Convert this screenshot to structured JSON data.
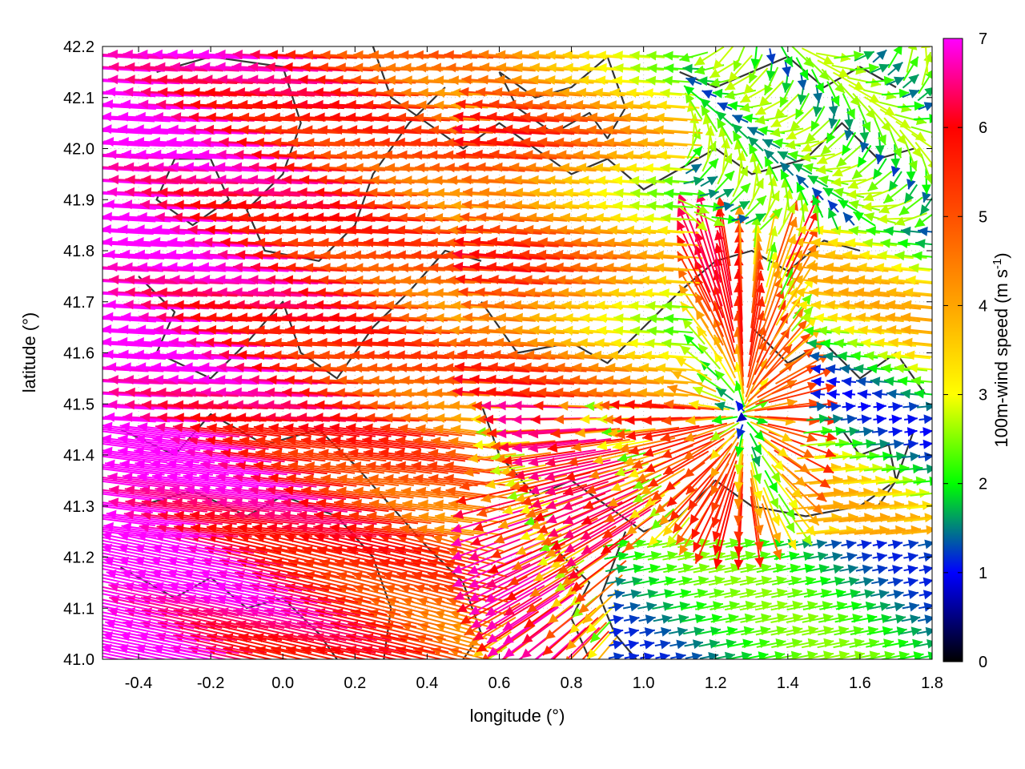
{
  "chart_data": {
    "type": "vector-field",
    "xlabel": "longitude (°)",
    "ylabel": "latitude (°)",
    "colorbar_label": "100m-wind speed (m s",
    "colorbar_label_sup": "-1",
    "colorbar_label_end": ")",
    "xlim": [
      -0.5,
      1.8
    ],
    "ylim": [
      41.0,
      42.2
    ],
    "x_ticks": [
      {
        "value": -0.4,
        "label": "-0.4"
      },
      {
        "value": -0.2,
        "label": "-0.2"
      },
      {
        "value": 0.0,
        "label": "0.0"
      },
      {
        "value": 0.2,
        "label": "0.2"
      },
      {
        "value": 0.4,
        "label": "0.4"
      },
      {
        "value": 0.6,
        "label": "0.6"
      },
      {
        "value": 0.8,
        "label": "0.8"
      },
      {
        "value": 1.0,
        "label": "1.0"
      },
      {
        "value": 1.2,
        "label": "1.2"
      },
      {
        "value": 1.4,
        "label": "1.4"
      },
      {
        "value": 1.6,
        "label": "1.6"
      },
      {
        "value": 1.8,
        "label": "1.8"
      }
    ],
    "y_ticks": [
      {
        "value": 41.0,
        "label": "41.0"
      },
      {
        "value": 41.1,
        "label": "41.1"
      },
      {
        "value": 41.2,
        "label": "41.2"
      },
      {
        "value": 41.3,
        "label": "41.3"
      },
      {
        "value": 41.4,
        "label": "41.4"
      },
      {
        "value": 41.5,
        "label": "41.5"
      },
      {
        "value": 41.6,
        "label": "41.6"
      },
      {
        "value": 41.7,
        "label": "41.7"
      },
      {
        "value": 41.8,
        "label": "41.8"
      },
      {
        "value": 41.9,
        "label": "41.9"
      },
      {
        "value": 42.0,
        "label": "42.0"
      },
      {
        "value": 42.1,
        "label": "42.1"
      },
      {
        "value": 42.2,
        "label": "42.2"
      }
    ],
    "colorbar": {
      "range": [
        0,
        7
      ],
      "ticks": [
        {
          "value": 0,
          "label": "0"
        },
        {
          "value": 1,
          "label": "1"
        },
        {
          "value": 2,
          "label": "2"
        },
        {
          "value": 3,
          "label": "3"
        },
        {
          "value": 4,
          "label": "4"
        },
        {
          "value": 5,
          "label": "5"
        },
        {
          "value": 6,
          "label": "6"
        },
        {
          "value": 7,
          "label": "7"
        }
      ],
      "stops": [
        {
          "value": 0,
          "color": "#000000"
        },
        {
          "value": 1,
          "color": "#0000ff"
        },
        {
          "value": 2,
          "color": "#00ff00"
        },
        {
          "value": 3,
          "color": "#ffff00"
        },
        {
          "value": 4,
          "color": "#ffa500"
        },
        {
          "value": 5,
          "color": "#ff5000"
        },
        {
          "value": 6,
          "color": "#ff0000"
        },
        {
          "value": 7,
          "color": "#ff00ff"
        }
      ]
    },
    "grid": true,
    "contour_color": "#333333",
    "contours": [
      [
        [
          -0.35,
          42.15
        ],
        [
          -0.2,
          42.18
        ],
        [
          0.0,
          42.16
        ],
        [
          0.05,
          42.05
        ],
        [
          0.0,
          41.95
        ],
        [
          -0.1,
          41.88
        ],
        [
          -0.05,
          41.8
        ],
        [
          0.1,
          41.78
        ],
        [
          0.2,
          41.85
        ],
        [
          0.25,
          41.95
        ],
        [
          0.35,
          42.05
        ],
        [
          0.45,
          42.12
        ]
      ],
      [
        [
          -0.2,
          41.98
        ],
        [
          -0.15,
          41.9
        ],
        [
          -0.25,
          41.85
        ],
        [
          -0.35,
          41.9
        ],
        [
          -0.3,
          41.98
        ],
        [
          -0.2,
          41.98
        ]
      ],
      [
        [
          -0.4,
          41.75
        ],
        [
          -0.3,
          41.68
        ],
        [
          -0.35,
          41.6
        ],
        [
          -0.2,
          41.55
        ],
        [
          -0.1,
          41.62
        ],
        [
          0.0,
          41.7
        ],
        [
          0.05,
          41.6
        ],
        [
          0.15,
          41.55
        ],
        [
          0.25,
          41.65
        ],
        [
          0.35,
          41.72
        ],
        [
          0.45,
          41.8
        ],
        [
          0.55,
          41.78
        ]
      ],
      [
        [
          -0.45,
          41.45
        ],
        [
          -0.3,
          41.4
        ],
        [
          -0.2,
          41.48
        ],
        [
          -0.05,
          41.42
        ],
        [
          0.1,
          41.45
        ],
        [
          0.2,
          41.38
        ],
        [
          0.3,
          41.3
        ],
        [
          0.4,
          41.22
        ],
        [
          0.5,
          41.15
        ],
        [
          0.55,
          41.05
        ],
        [
          0.5,
          41.0
        ]
      ],
      [
        [
          -0.4,
          41.3
        ],
        [
          -0.25,
          41.33
        ],
        [
          -0.1,
          41.28
        ],
        [
          0.0,
          41.32
        ],
        [
          0.15,
          41.28
        ],
        [
          0.25,
          41.2
        ],
        [
          0.3,
          41.1
        ],
        [
          0.28,
          41.0
        ]
      ],
      [
        [
          -0.45,
          41.18
        ],
        [
          -0.3,
          41.12
        ],
        [
          -0.2,
          41.16
        ],
        [
          -0.1,
          41.1
        ],
        [
          0.0,
          41.12
        ],
        [
          0.1,
          41.05
        ],
        [
          0.15,
          41.0
        ]
      ],
      [
        [
          0.55,
          41.5
        ],
        [
          0.6,
          41.4
        ],
        [
          0.7,
          41.32
        ],
        [
          0.8,
          41.35
        ],
        [
          0.9,
          41.3
        ],
        [
          1.0,
          41.25
        ],
        [
          1.1,
          41.28
        ],
        [
          1.2,
          41.35
        ],
        [
          1.3,
          41.3
        ],
        [
          1.45,
          41.28
        ],
        [
          1.6,
          41.3
        ],
        [
          1.7,
          41.35
        ],
        [
          1.75,
          41.45
        ]
      ],
      [
        [
          0.75,
          41.22
        ],
        [
          0.85,
          41.15
        ],
        [
          0.8,
          41.08
        ],
        [
          0.85,
          41.0
        ]
      ],
      [
        [
          0.95,
          41.25
        ],
        [
          0.88,
          41.12
        ],
        [
          0.92,
          41.05
        ],
        [
          0.98,
          41.0
        ]
      ],
      [
        [
          0.55,
          41.7
        ],
        [
          0.65,
          41.6
        ],
        [
          0.8,
          41.62
        ],
        [
          0.9,
          41.58
        ],
        [
          1.0,
          41.65
        ],
        [
          1.1,
          41.72
        ],
        [
          1.2,
          41.78
        ],
        [
          1.3,
          41.8
        ],
        [
          1.4,
          41.76
        ],
        [
          1.5,
          41.82
        ],
        [
          1.6,
          41.8
        ]
      ],
      [
        [
          0.25,
          42.2
        ],
        [
          0.3,
          42.1
        ],
        [
          0.4,
          42.05
        ],
        [
          0.5,
          42.0
        ],
        [
          0.6,
          42.05
        ],
        [
          0.7,
          42.0
        ],
        [
          0.8,
          41.95
        ],
        [
          0.9,
          41.98
        ],
        [
          1.0,
          41.92
        ],
        [
          1.1,
          41.96
        ],
        [
          1.2,
          42.0
        ],
        [
          1.3,
          41.95
        ],
        [
          1.45,
          41.98
        ],
        [
          1.55,
          42.05
        ],
        [
          1.65,
          41.98
        ],
        [
          1.75,
          42.0
        ]
      ],
      [
        [
          0.6,
          42.15
        ],
        [
          0.7,
          42.1
        ],
        [
          0.8,
          42.12
        ],
        [
          0.9,
          42.18
        ],
        [
          0.95,
          42.08
        ],
        [
          0.9,
          42.02
        ],
        [
          0.85,
          42.07
        ],
        [
          0.75,
          42.03
        ],
        [
          0.65,
          42.08
        ],
        [
          0.6,
          42.15
        ]
      ],
      [
        [
          1.3,
          41.65
        ],
        [
          1.4,
          41.58
        ],
        [
          1.5,
          41.62
        ],
        [
          1.6,
          41.55
        ],
        [
          1.7,
          41.6
        ],
        [
          1.78,
          41.52
        ]
      ],
      [
        [
          1.55,
          41.45
        ],
        [
          1.6,
          41.4
        ],
        [
          1.68,
          41.42
        ],
        [
          1.7,
          41.35
        ],
        [
          1.65,
          41.3
        ]
      ],
      [
        [
          1.1,
          42.15
        ],
        [
          1.2,
          42.12
        ],
        [
          1.3,
          42.15
        ],
        [
          1.4,
          42.18
        ],
        [
          1.5,
          42.12
        ],
        [
          1.6,
          42.16
        ],
        [
          1.7,
          42.12
        ]
      ]
    ]
  }
}
